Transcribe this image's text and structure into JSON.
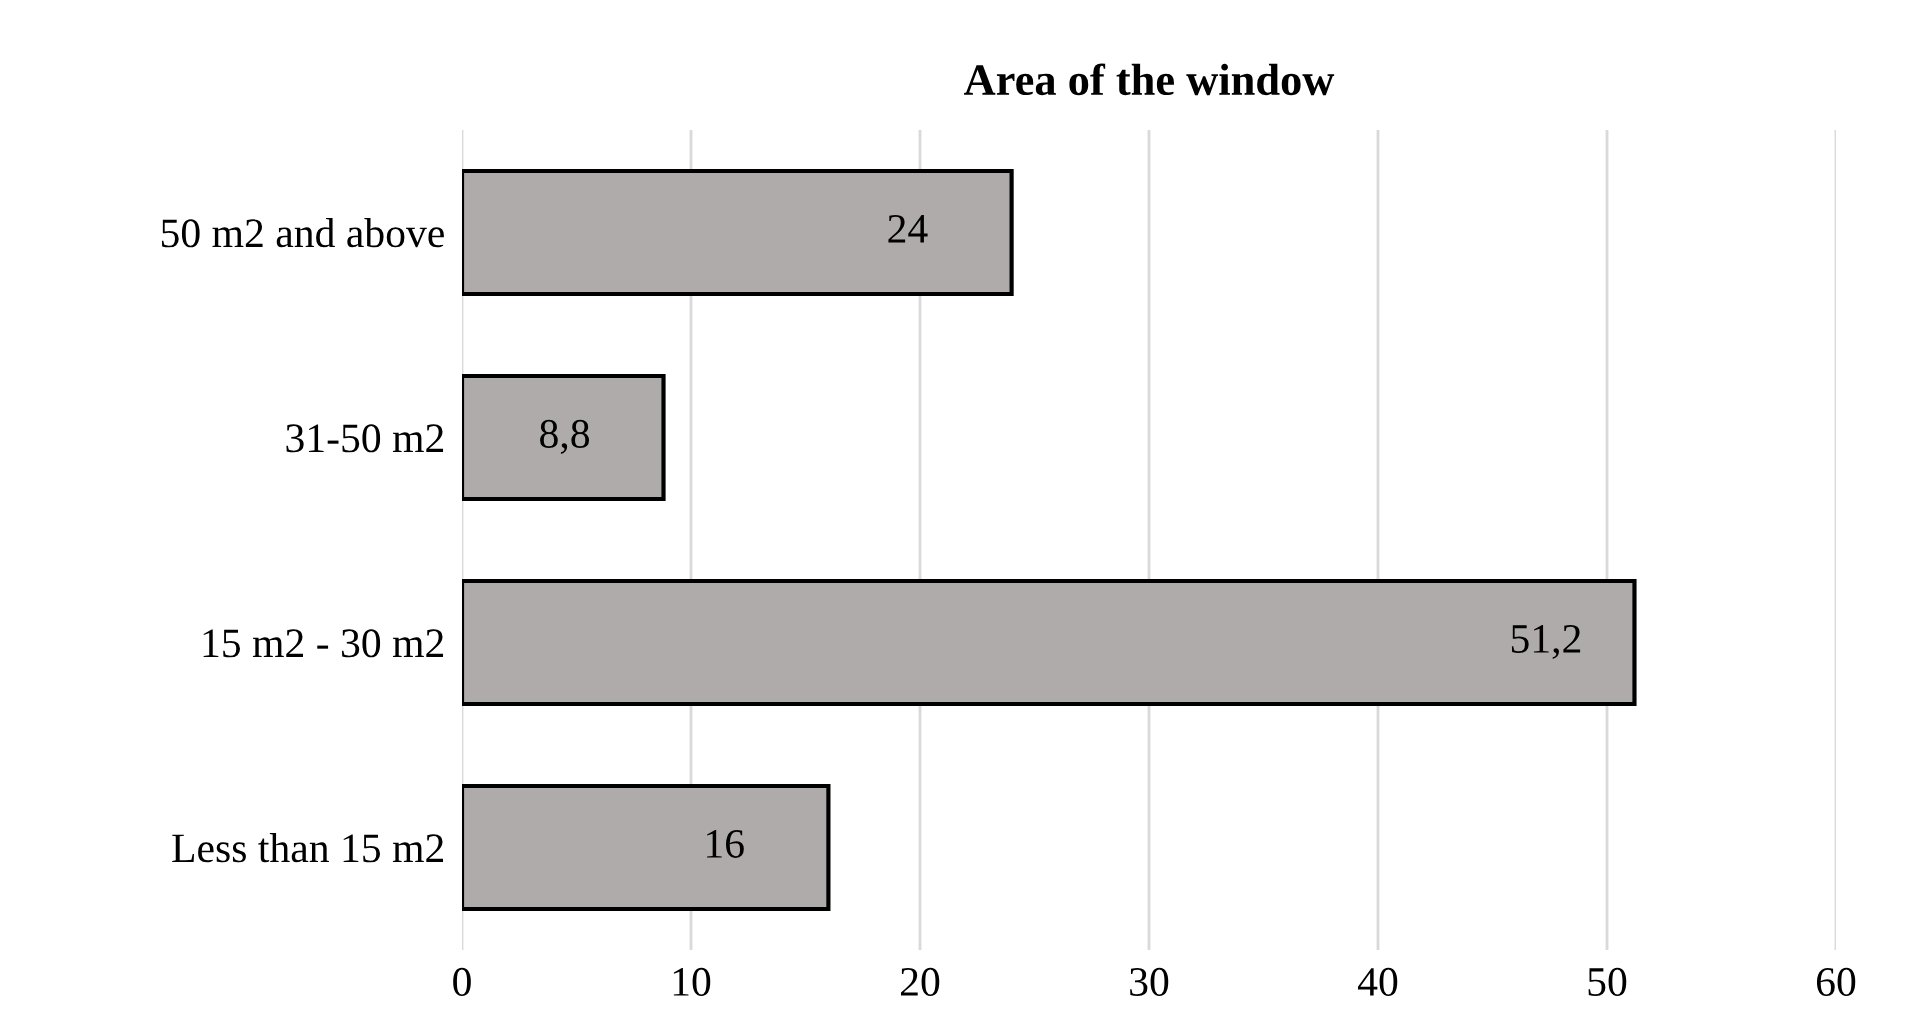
{
  "chart_data": {
    "type": "bar",
    "orientation": "horizontal",
    "title": "Area of the window",
    "categories": [
      "50 m2 and above",
      "31-50 m2",
      "15 m2 - 30 m2",
      "Less than 15 m2"
    ],
    "values": [
      24,
      8.8,
      51.2,
      16
    ],
    "value_labels": [
      "24",
      "8,8",
      "51,2",
      "16"
    ],
    "color": "#afabab",
    "xlim": [
      0,
      60
    ],
    "xticks": [
      0,
      10,
      20,
      30,
      40,
      50,
      60
    ],
    "grid": "x"
  }
}
